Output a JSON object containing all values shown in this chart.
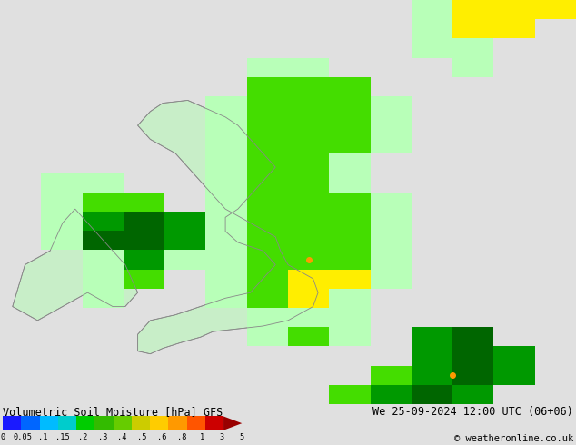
{
  "title_left": "Volumetric Soil Moisture [hPa] GFS",
  "title_right": "We 25-09-2024 12:00 UTC (06+06)",
  "copyright": "© weatheronline.co.uk",
  "colorbar_tick_labels": [
    "0",
    "0.05",
    ".1",
    ".15",
    ".2",
    ".3",
    ".4",
    ".5",
    ".6",
    ".8",
    "1",
    "3",
    "5"
  ],
  "colorbar_colors": [
    "#1a1aff",
    "#0066ff",
    "#00bbff",
    "#00cccc",
    "#00cc00",
    "#33bb00",
    "#66cc00",
    "#cccc00",
    "#ffcc00",
    "#ff9900",
    "#ff5500",
    "#cc0000",
    "#990000"
  ],
  "bg_color": "#e0e0e0",
  "sea_color": "#e0e0e0",
  "land_outline": "#999999",
  "c_ltgreen": "#b3ffb3",
  "c_green": "#44dd00",
  "c_dkgreen": "#009900",
  "c_xdkgreen": "#006600",
  "c_yellow": "#ffee00",
  "c_orange": "#ff9900",
  "figsize": [
    6.34,
    4.9
  ],
  "dpi": 100,
  "map_extent": [
    -11.0,
    12.0,
    48.0,
    62.5
  ],
  "grid_cells": [
    {
      "col": 9,
      "row": 1,
      "color": "#b8ffb8"
    },
    {
      "col": 10,
      "row": 1,
      "color": "#b8ffb8"
    },
    {
      "col": 11,
      "row": 1,
      "color": "#ffee00"
    },
    {
      "col": 12,
      "row": 1,
      "color": "#ffee00"
    },
    {
      "col": 10,
      "row": 2,
      "color": "#b8ffb8"
    },
    {
      "col": 11,
      "row": 2,
      "color": "#ffee00"
    },
    {
      "col": 12,
      "row": 2,
      "color": "#ffee00"
    },
    {
      "col": 9,
      "row": 3,
      "color": "#44dd00"
    },
    {
      "col": 10,
      "row": 3,
      "color": "#44dd00"
    },
    {
      "col": 4,
      "row": 4,
      "color": "#44dd00"
    },
    {
      "col": 5,
      "row": 4,
      "color": "#44dd00"
    },
    {
      "col": 6,
      "row": 4,
      "color": "#44dd00"
    },
    {
      "col": 7,
      "row": 4,
      "color": "#44dd00"
    },
    {
      "col": 8,
      "row": 4,
      "color": "#44dd00"
    },
    {
      "col": 4,
      "row": 5,
      "color": "#44dd00"
    },
    {
      "col": 5,
      "row": 5,
      "color": "#009900"
    },
    {
      "col": 6,
      "row": 5,
      "color": "#009900"
    },
    {
      "col": 7,
      "row": 5,
      "color": "#009900"
    },
    {
      "col": 8,
      "row": 5,
      "color": "#44dd00"
    },
    {
      "col": 4,
      "row": 6,
      "color": "#44dd00"
    },
    {
      "col": 5,
      "row": 6,
      "color": "#009900"
    },
    {
      "col": 6,
      "row": 6,
      "color": "#006600"
    },
    {
      "col": 7,
      "row": 6,
      "color": "#009900"
    },
    {
      "col": 8,
      "row": 6,
      "color": "#44dd00"
    },
    {
      "col": 4,
      "row": 7,
      "color": "#44dd00"
    },
    {
      "col": 5,
      "row": 7,
      "color": "#009900"
    },
    {
      "col": 6,
      "row": 7,
      "color": "#009900"
    },
    {
      "col": 7,
      "row": 7,
      "color": "#44dd00"
    },
    {
      "col": 3,
      "row": 8,
      "color": "#44dd00"
    },
    {
      "col": 4,
      "row": 8,
      "color": "#009900"
    },
    {
      "col": 5,
      "row": 8,
      "color": "#009900"
    },
    {
      "col": 6,
      "row": 8,
      "color": "#44dd00"
    },
    {
      "col": 3,
      "row": 9,
      "color": "#b8ffb8"
    },
    {
      "col": 4,
      "row": 9,
      "color": "#44dd00"
    },
    {
      "col": 5,
      "row": 9,
      "color": "#b8ffb8"
    },
    {
      "col": 3,
      "row": 10,
      "color": "#b8ffb8"
    },
    {
      "col": 4,
      "row": 10,
      "color": "#44dd00"
    },
    {
      "col": 5,
      "row": 10,
      "color": "#b8ffb8"
    },
    {
      "col": 6,
      "row": 10,
      "color": "#b8ffb8"
    },
    {
      "col": 7,
      "row": 10,
      "color": "#b8ffb8"
    },
    {
      "col": 3,
      "row": 11,
      "color": "#b8ffb8"
    },
    {
      "col": 4,
      "row": 11,
      "color": "#b8ffb8"
    },
    {
      "col": 5,
      "row": 11,
      "color": "#b8ffb8"
    },
    {
      "col": 6,
      "row": 11,
      "color": "#44dd00"
    },
    {
      "col": 7,
      "row": 11,
      "color": "#44dd00"
    },
    {
      "col": 8,
      "row": 11,
      "color": "#b8ffb8"
    },
    {
      "col": 4,
      "row": 12,
      "color": "#b8ffb8"
    },
    {
      "col": 5,
      "row": 12,
      "color": "#b8ffb8"
    },
    {
      "col": 6,
      "row": 12,
      "color": "#44dd00"
    },
    {
      "col": 7,
      "row": 12,
      "color": "#44dd00"
    },
    {
      "col": 8,
      "row": 12,
      "color": "#b8ffb8"
    },
    {
      "col": 5,
      "row": 13,
      "color": "#b8ffb8"
    },
    {
      "col": 6,
      "row": 13,
      "color": "#44dd00"
    },
    {
      "col": 7,
      "row": 13,
      "color": "#ffee00"
    },
    {
      "col": 8,
      "row": 13,
      "color": "#ffee00"
    },
    {
      "col": 5,
      "row": 14,
      "color": "#b8ffb8"
    },
    {
      "col": 6,
      "row": 14,
      "color": "#44dd00"
    },
    {
      "col": 7,
      "row": 14,
      "color": "#ffee00"
    },
    {
      "col": 8,
      "row": 14,
      "color": "#b8ffb8"
    },
    {
      "col": 5,
      "row": 15,
      "color": "#b8ffb8"
    },
    {
      "col": 6,
      "row": 15,
      "color": "#b8ffb8"
    },
    {
      "col": 7,
      "row": 15,
      "color": "#b8ffb8"
    },
    {
      "col": 5,
      "row": 16,
      "color": "#44dd00"
    },
    {
      "col": 6,
      "row": 16,
      "color": "#44dd00"
    },
    {
      "col": 7,
      "row": 16,
      "color": "#44dd00"
    },
    {
      "col": 8,
      "row": 16,
      "color": "#44dd00"
    },
    {
      "col": 9,
      "row": 16,
      "color": "#44dd00"
    },
    {
      "col": 5,
      "row": 17,
      "color": "#44dd00"
    },
    {
      "col": 6,
      "row": 17,
      "color": "#44dd00"
    },
    {
      "col": 7,
      "row": 17,
      "color": "#44dd00"
    },
    {
      "col": 8,
      "row": 17,
      "color": "#44dd00"
    },
    {
      "col": 9,
      "row": 17,
      "color": "#44dd00"
    },
    {
      "col": 10,
      "row": 17,
      "color": "#44dd00"
    },
    {
      "col": 11,
      "row": 17,
      "color": "#009900"
    },
    {
      "col": 12,
      "row": 17,
      "color": "#44dd00"
    },
    {
      "col": 5,
      "row": 18,
      "color": "#44dd00"
    },
    {
      "col": 6,
      "row": 18,
      "color": "#44dd00"
    },
    {
      "col": 7,
      "row": 18,
      "color": "#44dd00"
    },
    {
      "col": 8,
      "row": 18,
      "color": "#44dd00"
    },
    {
      "col": 9,
      "row": 18,
      "color": "#44dd00"
    },
    {
      "col": 10,
      "row": 18,
      "color": "#009900"
    },
    {
      "col": 11,
      "row": 18,
      "color": "#006600"
    },
    {
      "col": 12,
      "row": 18,
      "color": "#009900"
    },
    {
      "col": 13,
      "row": 18,
      "color": "#44dd00"
    },
    {
      "col": 5,
      "row": 19,
      "color": "#b8ffb8"
    },
    {
      "col": 6,
      "row": 19,
      "color": "#44dd00"
    },
    {
      "col": 7,
      "row": 19,
      "color": "#44dd00"
    },
    {
      "col": 8,
      "row": 19,
      "color": "#44dd00"
    },
    {
      "col": 9,
      "row": 19,
      "color": "#009900"
    },
    {
      "col": 10,
      "row": 19,
      "color": "#006600"
    },
    {
      "col": 11,
      "row": 19,
      "color": "#006600"
    },
    {
      "col": 12,
      "row": 19,
      "color": "#006600"
    },
    {
      "col": 13,
      "row": 19,
      "color": "#009900"
    },
    {
      "col": 6,
      "row": 20,
      "color": "#b8ffb8"
    },
    {
      "col": 7,
      "row": 20,
      "color": "#b8ffb8"
    },
    {
      "col": 8,
      "row": 20,
      "color": "#44dd00"
    },
    {
      "col": 9,
      "row": 20,
      "color": "#44dd00"
    },
    {
      "col": 10,
      "row": 20,
      "color": "#009900"
    },
    {
      "col": 11,
      "row": 20,
      "color": "#009900"
    },
    {
      "col": 12,
      "row": 20,
      "color": "#009900"
    },
    {
      "col": 13,
      "row": 20,
      "color": "#009900"
    },
    {
      "col": 14,
      "row": 20,
      "color": "#009900"
    }
  ],
  "ireland_cells": [
    {
      "col": -1,
      "row": 10,
      "color": "#b8ffb8"
    },
    {
      "col": 0,
      "row": 10,
      "color": "#b8ffb8"
    },
    {
      "col": -1,
      "row": 11,
      "color": "#b8ffb8"
    },
    {
      "col": 0,
      "row": 11,
      "color": "#44dd00"
    },
    {
      "col": 1,
      "row": 11,
      "color": "#44dd00"
    },
    {
      "col": -1,
      "row": 12,
      "color": "#b8ffb8"
    },
    {
      "col": 0,
      "row": 12,
      "color": "#009900"
    },
    {
      "col": 1,
      "row": 12,
      "color": "#006600"
    },
    {
      "col": 2,
      "row": 12,
      "color": "#009900"
    },
    {
      "col": -1,
      "row": 13,
      "color": "#b8ffb8"
    },
    {
      "col": 0,
      "row": 13,
      "color": "#006600"
    },
    {
      "col": 1,
      "row": 13,
      "color": "#006600"
    },
    {
      "col": 2,
      "row": 13,
      "color": "#009900"
    },
    {
      "col": -1,
      "row": 14,
      "color": "#b8ffb8"
    },
    {
      "col": 0,
      "row": 14,
      "color": "#44dd00"
    },
    {
      "col": 1,
      "row": 14,
      "color": "#009900"
    },
    {
      "col": 0,
      "row": 15,
      "color": "#b8ffb8"
    },
    {
      "col": 1,
      "row": 15,
      "color": "#44dd00"
    },
    {
      "col": 0,
      "row": 16,
      "color": "#b8ffb8"
    }
  ]
}
